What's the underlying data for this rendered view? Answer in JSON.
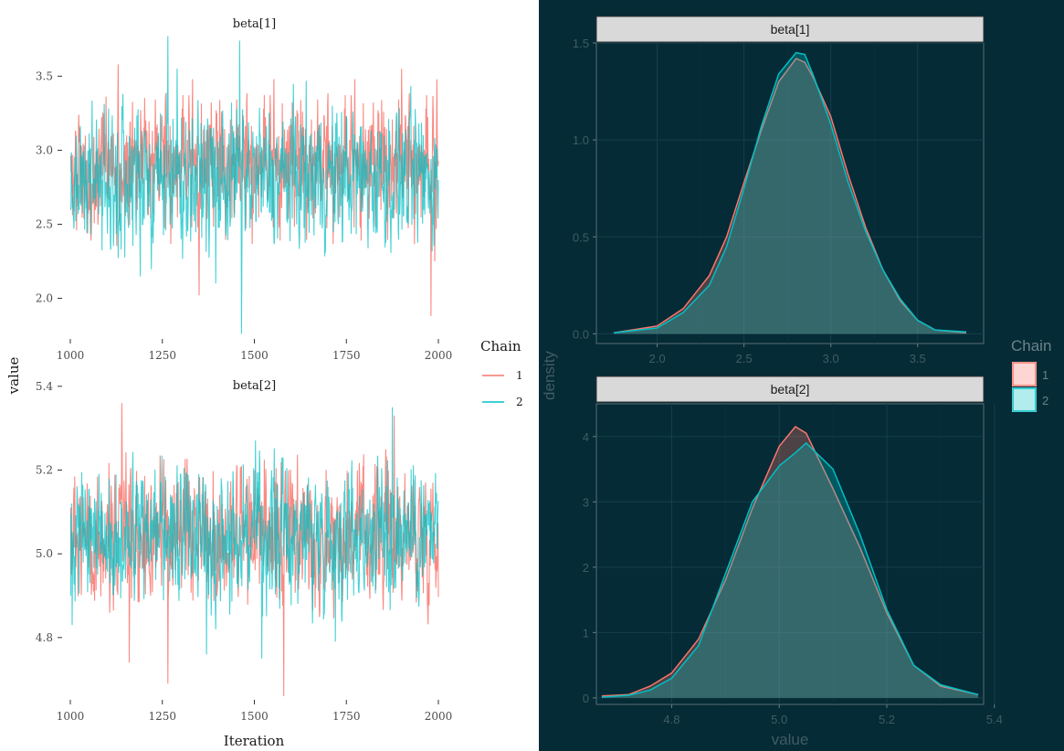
{
  "chart_data": [
    {
      "type": "line",
      "title": "",
      "xlabel": "Iteration",
      "ylabel": "value",
      "legend": {
        "title": "Chain",
        "entries": [
          "1",
          "2"
        ],
        "placement": "right"
      },
      "colors": {
        "1": "#f8766d",
        "2": "#00bfc4"
      },
      "panels": [
        {
          "strip": "beta[1]",
          "xlim": [
            1000,
            2000
          ],
          "xticks": [
            1000,
            1250,
            1500,
            1750,
            2000
          ],
          "ylim": [
            1.75,
            3.78
          ],
          "yticks": [
            2.0,
            2.5,
            3.0,
            3.5
          ],
          "ytick_labels": [
            "2.0",
            "2.5",
            "3.0",
            "3.5"
          ],
          "series": [
            {
              "name": "1",
              "mean": 2.82,
              "sd": 0.27,
              "spikes": [
                [
                  1130,
                  3.58
                ],
                [
                  1350,
                  2.02
                ],
                [
                  1900,
                  3.55
                ],
                [
                  1980,
                  1.88
                ],
                [
                  1990,
                  2.25
                ]
              ]
            },
            {
              "name": "2",
              "mean": 2.82,
              "sd": 0.27,
              "spikes": [
                [
                  1265,
                  3.77
                ],
                [
                  1460,
                  3.74
                ],
                [
                  1465,
                  1.76
                ],
                [
                  1395,
                  2.1
                ],
                [
                  1290,
                  3.55
                ]
              ]
            }
          ]
        },
        {
          "strip": "beta[2]",
          "xlim": [
            1000,
            2000
          ],
          "xticks": [
            1000,
            1250,
            1500,
            1750,
            2000
          ],
          "ylim": [
            4.66,
            5.38
          ],
          "yticks": [
            4.8,
            5.0,
            5.2,
            5.4
          ],
          "ytick_labels": [
            "4.8",
            "5.0",
            "5.2",
            "5.4"
          ],
          "series": [
            {
              "name": "1",
              "mean": 5.05,
              "sd": 0.095,
              "spikes": [
                [
                  1140,
                  5.36
                ],
                [
                  1160,
                  4.74
                ],
                [
                  1265,
                  4.69
                ],
                [
                  1580,
                  4.66
                ],
                [
                  1880,
                  5.33
                ]
              ]
            },
            {
              "name": "2",
              "mean": 5.05,
              "sd": 0.095,
              "spikes": [
                [
                  1875,
                  5.35
                ],
                [
                  1370,
                  4.76
                ],
                [
                  1520,
                  4.75
                ],
                [
                  1005,
                  4.83
                ],
                [
                  1720,
                  4.79
                ]
              ]
            }
          ]
        }
      ]
    },
    {
      "type": "area",
      "title": "",
      "xlabel": "value",
      "ylabel": "density",
      "legend": {
        "title": "Chain",
        "entries": [
          "1",
          "2"
        ],
        "placement": "right"
      },
      "colors": {
        "1": "#f8766d",
        "2": "#00bfc4"
      },
      "grid": true,
      "panels": [
        {
          "strip": "beta[1]",
          "xlim": [
            1.65,
            3.88
          ],
          "xticks": [
            2.0,
            2.5,
            3.0,
            3.5
          ],
          "xtick_labels": [
            "2.0",
            "2.5",
            "3.0",
            "3.5"
          ],
          "ylim": [
            -0.05,
            1.5
          ],
          "yticks": [
            0.0,
            0.5,
            1.0,
            1.5
          ],
          "ytick_labels": [
            "0.0",
            "0.5",
            "1.0",
            "1.5"
          ],
          "series": [
            {
              "name": "1",
              "x": [
                1.75,
                2.0,
                2.15,
                2.3,
                2.4,
                2.5,
                2.6,
                2.7,
                2.8,
                2.85,
                2.9,
                3.0,
                3.1,
                3.2,
                3.3,
                3.4,
                3.5,
                3.6,
                3.78
              ],
              "y": [
                0.005,
                0.04,
                0.13,
                0.3,
                0.5,
                0.78,
                1.05,
                1.3,
                1.42,
                1.4,
                1.32,
                1.12,
                0.82,
                0.55,
                0.33,
                0.17,
                0.07,
                0.02,
                0.005
              ]
            },
            {
              "name": "2",
              "x": [
                1.75,
                2.0,
                2.15,
                2.3,
                2.4,
                2.5,
                2.6,
                2.7,
                2.8,
                2.85,
                2.9,
                3.0,
                3.1,
                3.2,
                3.3,
                3.4,
                3.5,
                3.6,
                3.78
              ],
              "y": [
                0.005,
                0.03,
                0.11,
                0.25,
                0.45,
                0.75,
                1.07,
                1.34,
                1.45,
                1.44,
                1.33,
                1.08,
                0.78,
                0.53,
                0.33,
                0.18,
                0.07,
                0.02,
                0.01
              ]
            }
          ]
        },
        {
          "strip": "beta[2]",
          "xlim": [
            4.66,
            5.38
          ],
          "xticks": [
            4.8,
            5.0,
            5.2,
            5.4
          ],
          "xtick_labels": [
            "4.8",
            "5.0",
            "5.2",
            "5.4"
          ],
          "ylim": [
            -0.1,
            4.5
          ],
          "yticks": [
            0,
            1,
            2,
            3,
            4
          ],
          "ytick_labels": [
            "0",
            "1",
            "2",
            "3",
            "4"
          ],
          "series": [
            {
              "name": "1",
              "x": [
                4.67,
                4.72,
                4.76,
                4.8,
                4.85,
                4.9,
                4.95,
                5.0,
                5.03,
                5.05,
                5.1,
                5.15,
                5.2,
                5.25,
                5.3,
                5.37
              ],
              "y": [
                0.03,
                0.05,
                0.18,
                0.38,
                0.9,
                1.8,
                2.9,
                3.85,
                4.15,
                4.05,
                3.2,
                2.3,
                1.3,
                0.5,
                0.18,
                0.05
              ]
            },
            {
              "name": "2",
              "x": [
                4.67,
                4.72,
                4.76,
                4.8,
                4.85,
                4.9,
                4.95,
                5.0,
                5.03,
                5.05,
                5.1,
                5.15,
                5.2,
                5.25,
                5.3,
                5.37
              ],
              "y": [
                0.01,
                0.04,
                0.12,
                0.3,
                0.8,
                1.9,
                3.0,
                3.55,
                3.75,
                3.9,
                3.5,
                2.5,
                1.35,
                0.5,
                0.2,
                0.05
              ]
            }
          ]
        }
      ]
    }
  ]
}
